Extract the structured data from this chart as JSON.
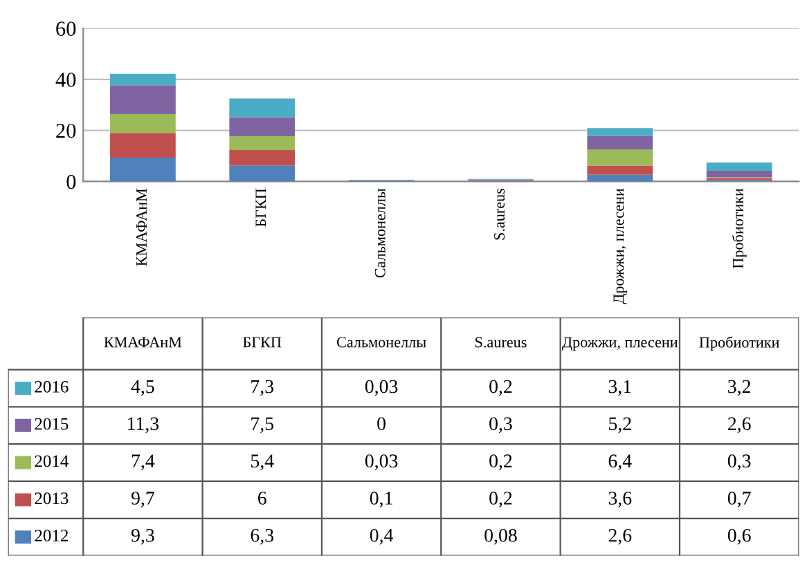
{
  "chart_data": {
    "type": "bar",
    "stacked": true,
    "categories": [
      "КМАФАнМ",
      "БГКП",
      "Сальмонеллы",
      "S.aureus",
      "Дрожжи, плесени",
      "Пробиотики"
    ],
    "series": [
      {
        "name": "2012",
        "color": "#4f81bd",
        "values": [
          9.3,
          6.3,
          0.4,
          0.08,
          2.6,
          0.6
        ],
        "value_labels": [
          "9,3",
          "6,3",
          "0,4",
          "0,08",
          "2,6",
          "0,6"
        ]
      },
      {
        "name": "2013",
        "color": "#c0504d",
        "values": [
          9.7,
          6,
          0.1,
          0.2,
          3.6,
          0.7
        ],
        "value_labels": [
          "9,7",
          "6",
          "0,1",
          "0,2",
          "3,6",
          "0,7"
        ]
      },
      {
        "name": "2014",
        "color": "#9bbb59",
        "values": [
          7.4,
          5.4,
          0.03,
          0.2,
          6.4,
          0.3
        ],
        "value_labels": [
          "7,4",
          "5,4",
          "0,03",
          "0,2",
          "6,4",
          "0,3"
        ]
      },
      {
        "name": "2015",
        "color": "#8064a2",
        "values": [
          11.3,
          7.5,
          0,
          0.3,
          5.2,
          2.6
        ],
        "value_labels": [
          "11,3",
          "7,5",
          "0",
          "0,3",
          "5,2",
          "2,6"
        ]
      },
      {
        "name": "2016",
        "color": "#4bacc6",
        "values": [
          4.5,
          7.3,
          0.03,
          0.2,
          3.1,
          3.2
        ],
        "value_labels": [
          "4,5",
          "7,3",
          "0,03",
          "0,2",
          "3,1",
          "3,2"
        ]
      }
    ],
    "ylim": [
      0,
      60
    ],
    "yticks": [
      0,
      20,
      40,
      60
    ],
    "grid": "y",
    "legend": "bottom"
  }
}
